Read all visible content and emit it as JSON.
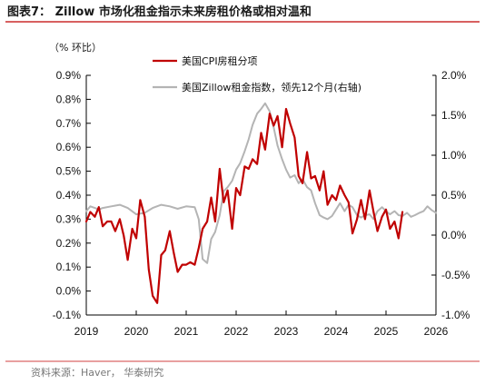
{
  "title": "图表7：  Zillow 市场化租金指示未来房租价格或相对温和",
  "unit_label": "（% 环比）",
  "source": "资料来源：Haver，  华泰研究",
  "chart_data": {
    "type": "line",
    "x_ticks": [
      "2019",
      "2020",
      "2021",
      "2022",
      "2023",
      "2024",
      "2025",
      "2026"
    ],
    "xlim": [
      2019,
      2026
    ],
    "y_left": {
      "ylim": [
        -0.1,
        0.9
      ],
      "ticks": [
        -0.1,
        0.0,
        0.1,
        0.2,
        0.3,
        0.4,
        0.5,
        0.6,
        0.7,
        0.8,
        0.9
      ],
      "tick_labels": [
        "-0.1%",
        "0.0%",
        "0.1%",
        "0.2%",
        "0.3%",
        "0.4%",
        "0.5%",
        "0.6%",
        "0.7%",
        "0.8%",
        "0.9%"
      ]
    },
    "y_right": {
      "ylim": [
        -1.0,
        2.0
      ],
      "ticks": [
        -1.0,
        -0.5,
        0.0,
        0.5,
        1.0,
        1.5,
        2.0
      ],
      "tick_labels": [
        "-1.0%",
        "-0.5%",
        "0.0%",
        "0.5%",
        "1.0%",
        "1.5%",
        "2.0%"
      ]
    },
    "series": [
      {
        "name": "美国CPI房租分项",
        "axis": "left",
        "color": "#c00000",
        "points": [
          [
            2019.0,
            0.29
          ],
          [
            2019.08,
            0.33
          ],
          [
            2019.17,
            0.31
          ],
          [
            2019.25,
            0.35
          ],
          [
            2019.33,
            0.27
          ],
          [
            2019.42,
            0.29
          ],
          [
            2019.5,
            0.29
          ],
          [
            2019.58,
            0.25
          ],
          [
            2019.67,
            0.3
          ],
          [
            2019.75,
            0.23
          ],
          [
            2019.83,
            0.13
          ],
          [
            2019.92,
            0.26
          ],
          [
            2020.0,
            0.22
          ],
          [
            2020.08,
            0.38
          ],
          [
            2020.17,
            0.31
          ],
          [
            2020.25,
            0.09
          ],
          [
            2020.33,
            -0.02
          ],
          [
            2020.42,
            -0.05
          ],
          [
            2020.5,
            0.15
          ],
          [
            2020.58,
            0.17
          ],
          [
            2020.67,
            0.25
          ],
          [
            2020.75,
            0.16
          ],
          [
            2020.83,
            0.08
          ],
          [
            2020.92,
            0.11
          ],
          [
            2021.0,
            0.11
          ],
          [
            2021.08,
            0.12
          ],
          [
            2021.17,
            0.11
          ],
          [
            2021.25,
            0.18
          ],
          [
            2021.33,
            0.26
          ],
          [
            2021.42,
            0.29
          ],
          [
            2021.5,
            0.39
          ],
          [
            2021.58,
            0.29
          ],
          [
            2021.67,
            0.51
          ],
          [
            2021.75,
            0.37
          ],
          [
            2021.83,
            0.42
          ],
          [
            2021.92,
            0.26
          ],
          [
            2022.0,
            0.43
          ],
          [
            2022.08,
            0.4
          ],
          [
            2022.17,
            0.52
          ],
          [
            2022.25,
            0.51
          ],
          [
            2022.33,
            0.55
          ],
          [
            2022.42,
            0.53
          ],
          [
            2022.5,
            0.66
          ],
          [
            2022.58,
            0.59
          ],
          [
            2022.67,
            0.74
          ],
          [
            2022.75,
            0.69
          ],
          [
            2022.83,
            0.73
          ],
          [
            2022.92,
            0.6
          ],
          [
            2023.0,
            0.76
          ],
          [
            2023.08,
            0.7
          ],
          [
            2023.17,
            0.64
          ],
          [
            2023.25,
            0.48
          ],
          [
            2023.33,
            0.45
          ],
          [
            2023.42,
            0.58
          ],
          [
            2023.5,
            0.47
          ],
          [
            2023.58,
            0.48
          ],
          [
            2023.67,
            0.42
          ],
          [
            2023.75,
            0.5
          ],
          [
            2023.83,
            0.36
          ],
          [
            2023.92,
            0.4
          ],
          [
            2024.0,
            0.38
          ],
          [
            2024.08,
            0.44
          ],
          [
            2024.17,
            0.4
          ],
          [
            2024.25,
            0.37
          ],
          [
            2024.33,
            0.24
          ],
          [
            2024.42,
            0.3
          ],
          [
            2024.5,
            0.38
          ],
          [
            2024.58,
            0.3
          ],
          [
            2024.67,
            0.42
          ],
          [
            2024.75,
            0.33
          ],
          [
            2024.83,
            0.25
          ],
          [
            2024.92,
            0.31
          ],
          [
            2025.0,
            0.34
          ],
          [
            2025.08,
            0.26
          ],
          [
            2025.17,
            0.29
          ],
          [
            2025.25,
            0.22
          ],
          [
            2025.33,
            0.33
          ]
        ]
      },
      {
        "name": "美国Zillow租金指数，领先12个月(右轴)",
        "axis": "right",
        "color": "#b4b4b4",
        "points": [
          [
            2019.0,
            0.3
          ],
          [
            2019.08,
            0.36
          ],
          [
            2019.17,
            0.34
          ],
          [
            2019.25,
            0.32
          ],
          [
            2019.33,
            0.34
          ],
          [
            2019.5,
            0.36
          ],
          [
            2019.67,
            0.38
          ],
          [
            2019.83,
            0.34
          ],
          [
            2020.0,
            0.26
          ],
          [
            2020.17,
            0.28
          ],
          [
            2020.33,
            0.34
          ],
          [
            2020.5,
            0.38
          ],
          [
            2020.67,
            0.36
          ],
          [
            2020.83,
            0.33
          ],
          [
            2021.0,
            0.36
          ],
          [
            2021.17,
            0.35
          ],
          [
            2021.25,
            0.2
          ],
          [
            2021.33,
            -0.3
          ],
          [
            2021.42,
            -0.35
          ],
          [
            2021.5,
            -0.05
          ],
          [
            2021.58,
            0.04
          ],
          [
            2021.67,
            0.25
          ],
          [
            2021.75,
            0.55
          ],
          [
            2021.83,
            0.6
          ],
          [
            2021.92,
            0.68
          ],
          [
            2022.0,
            0.82
          ],
          [
            2022.08,
            0.9
          ],
          [
            2022.17,
            1.05
          ],
          [
            2022.25,
            1.2
          ],
          [
            2022.33,
            1.38
          ],
          [
            2022.42,
            1.52
          ],
          [
            2022.5,
            1.58
          ],
          [
            2022.58,
            1.65
          ],
          [
            2022.67,
            1.55
          ],
          [
            2022.75,
            1.35
          ],
          [
            2022.83,
            1.12
          ],
          [
            2022.92,
            0.95
          ],
          [
            2023.0,
            0.82
          ],
          [
            2023.08,
            0.72
          ],
          [
            2023.17,
            0.75
          ],
          [
            2023.25,
            0.65
          ],
          [
            2023.33,
            0.7
          ],
          [
            2023.42,
            0.6
          ],
          [
            2023.5,
            0.56
          ],
          [
            2023.58,
            0.4
          ],
          [
            2023.67,
            0.25
          ],
          [
            2023.75,
            0.22
          ],
          [
            2023.83,
            0.2
          ],
          [
            2023.92,
            0.24
          ],
          [
            2024.0,
            0.32
          ],
          [
            2024.08,
            0.4
          ],
          [
            2024.17,
            0.3
          ],
          [
            2024.25,
            0.38
          ],
          [
            2024.33,
            0.35
          ],
          [
            2024.42,
            0.25
          ],
          [
            2024.5,
            0.22
          ],
          [
            2024.58,
            0.25
          ],
          [
            2024.67,
            0.26
          ],
          [
            2024.75,
            0.2
          ],
          [
            2024.83,
            0.3
          ],
          [
            2024.92,
            0.35
          ],
          [
            2025.0,
            0.3
          ],
          [
            2025.08,
            0.26
          ],
          [
            2025.17,
            0.3
          ],
          [
            2025.25,
            0.25
          ],
          [
            2025.33,
            0.24
          ],
          [
            2025.42,
            0.28
          ],
          [
            2025.5,
            0.23
          ],
          [
            2025.58,
            0.25
          ],
          [
            2025.67,
            0.28
          ],
          [
            2025.75,
            0.3
          ],
          [
            2025.83,
            0.36
          ],
          [
            2025.92,
            0.31
          ],
          [
            2026.0,
            0.28
          ]
        ]
      }
    ]
  }
}
